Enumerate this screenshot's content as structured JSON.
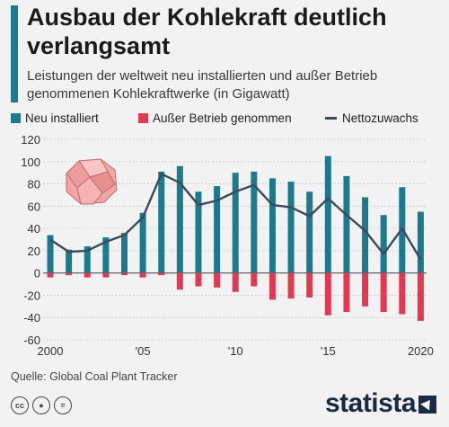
{
  "header": {
    "title": "Ausbau der Kohlekraft deutlich verlangsamt",
    "subtitle": "Leistungen der weltweit neu installierten und außer Betrieb genommenen Kohlekraftwerke (in Gigawatt)"
  },
  "colors": {
    "installed": "#1c7a8c",
    "retired": "#e03a52",
    "net": "#3c4a5e",
    "accent": "#1c7a8c",
    "brand": "#1a2a44"
  },
  "footer": {
    "source": "Quelle: Global Coal Plant Tracker",
    "brand": "statista",
    "license_icons": [
      "cc-icon",
      "person-icon",
      "equals-icon"
    ]
  },
  "chart_data": {
    "type": "bar",
    "x": [
      2000,
      2001,
      2002,
      2003,
      2004,
      2005,
      2006,
      2007,
      2008,
      2009,
      2010,
      2011,
      2012,
      2013,
      2014,
      2015,
      2016,
      2017,
      2018,
      2019,
      2020
    ],
    "series": [
      {
        "name": "Neu installiert",
        "type": "bar",
        "values": [
          34,
          21,
          24,
          32,
          36,
          54,
          91,
          96,
          73,
          78,
          90,
          91,
          85,
          82,
          73,
          105,
          87,
          68,
          52,
          77,
          55
        ]
      },
      {
        "name": "Außer Betrieb genommen",
        "type": "bar",
        "values": [
          -4,
          -2,
          -4,
          -4,
          -2,
          -4,
          -2,
          -15,
          -12,
          -13,
          -17,
          -12,
          -24,
          -23,
          -22,
          -38,
          -35,
          -30,
          -35,
          -37,
          -43
        ]
      },
      {
        "name": "Nettozuwachs",
        "type": "line",
        "values": [
          30,
          19,
          20,
          28,
          34,
          50,
          89,
          81,
          61,
          65,
          73,
          79,
          61,
          59,
          51,
          67,
          52,
          38,
          17,
          40,
          12
        ]
      }
    ],
    "ylim": [
      -60,
      120
    ],
    "yticks": [
      "120",
      "100",
      "80",
      "60",
      "40",
      "20",
      "0",
      "-20",
      "-40",
      "-60"
    ],
    "xticks": [
      "2000",
      "'05",
      "'10",
      "'15",
      "2020"
    ],
    "xlabel": "",
    "ylabel": "",
    "grid": true,
    "legend_position": "top-left"
  }
}
